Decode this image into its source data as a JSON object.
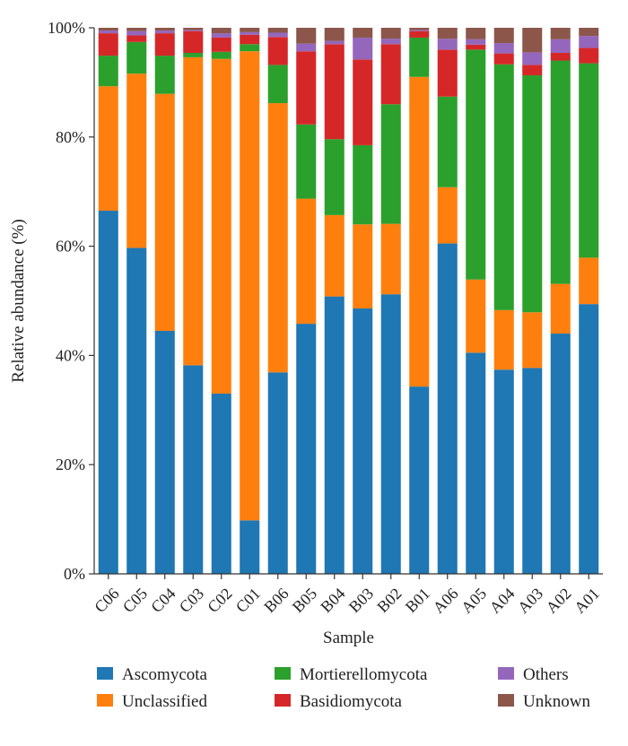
{
  "chart_data": {
    "type": "bar",
    "stacked": true,
    "normalized": true,
    "xlabel": "Sample",
    "ylabel": "Relative abundance (%)",
    "ylim": [
      0,
      100
    ],
    "yticks": [
      "0%",
      "20%",
      "40%",
      "60%",
      "80%",
      "100%"
    ],
    "ytick_values": [
      0,
      20,
      40,
      60,
      80,
      100
    ],
    "categories": [
      "C06",
      "C05",
      "C04",
      "C03",
      "C02",
      "C01",
      "B06",
      "B05",
      "B04",
      "B03",
      "B02",
      "B01",
      "A06",
      "A05",
      "A04",
      "A03",
      "A02",
      "A01"
    ],
    "series": [
      {
        "name": "Ascomycota",
        "color": "#1f77b4",
        "values": [
          66.5,
          59.7,
          44.5,
          38.2,
          33.0,
          9.8,
          36.9,
          45.8,
          50.8,
          48.6,
          51.2,
          34.3,
          60.5,
          40.5,
          37.4,
          37.7,
          44.0,
          49.4
        ]
      },
      {
        "name": "Unclassified",
        "color": "#ff7f0e",
        "values": [
          22.8,
          31.9,
          43.4,
          56.4,
          61.3,
          85.9,
          49.3,
          22.9,
          14.9,
          15.4,
          12.9,
          56.7,
          10.3,
          13.4,
          10.9,
          10.2,
          9.1,
          8.5
        ]
      },
      {
        "name": "Mortierellomycota",
        "color": "#2ca02c",
        "values": [
          5.6,
          5.8,
          7.0,
          0.8,
          1.3,
          1.3,
          7.0,
          13.6,
          13.9,
          14.5,
          21.9,
          7.2,
          16.6,
          42.1,
          45.0,
          43.4,
          40.9,
          35.6
        ]
      },
      {
        "name": "Basidiomycota",
        "color": "#d62728",
        "values": [
          4.1,
          1.2,
          4.1,
          4.0,
          2.6,
          1.7,
          5.1,
          13.4,
          17.4,
          15.7,
          11.0,
          1.2,
          8.6,
          0.9,
          2.0,
          1.9,
          1.4,
          2.8
        ]
      },
      {
        "name": "Others",
        "color": "#9467bd",
        "values": [
          0.5,
          0.8,
          0.5,
          0.2,
          0.8,
          0.5,
          0.8,
          1.4,
          0.6,
          4.0,
          1.0,
          0.2,
          2.0,
          1.0,
          1.9,
          2.3,
          2.5,
          2.2
        ]
      },
      {
        "name": "Unknown",
        "color": "#8c564b",
        "values": [
          0.5,
          0.6,
          0.5,
          0.4,
          1.0,
          0.8,
          0.9,
          2.9,
          2.4,
          1.8,
          2.0,
          0.4,
          2.0,
          2.1,
          2.8,
          4.5,
          2.1,
          1.5
        ]
      }
    ],
    "legend": {
      "placement": "bottom",
      "columns": 3,
      "order": [
        "Ascomycota",
        "Mortierellomycota",
        "Others",
        "Unclassified",
        "Basidiomycota",
        "Unknown"
      ]
    },
    "grid": false
  }
}
